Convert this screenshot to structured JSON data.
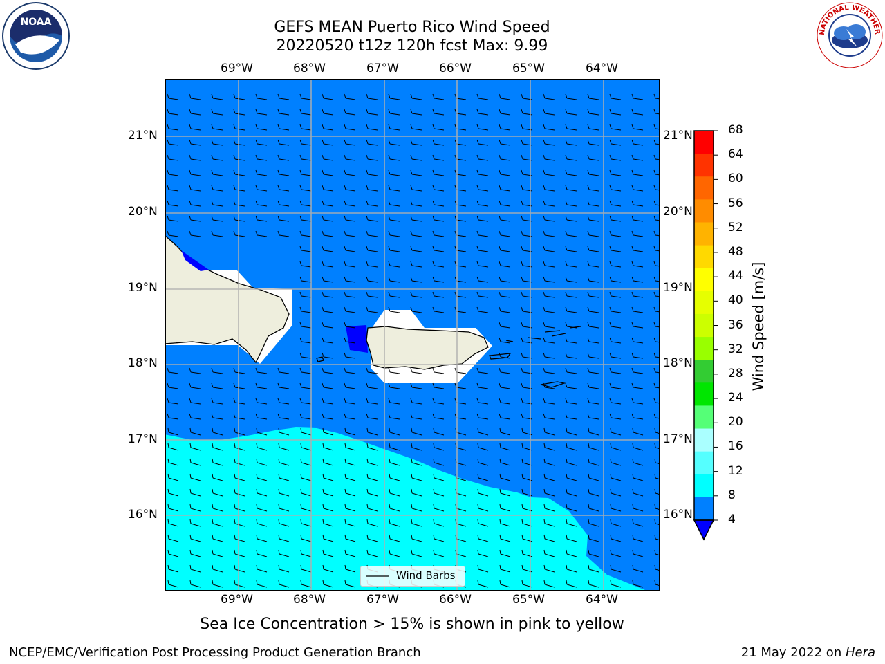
{
  "title": {
    "line1": "GEFS MEAN Puerto Rico Wind Speed",
    "line2": "20220520 t12z 120h fcst   Max: 9.99"
  },
  "lon_labels": [
    "69°W",
    "68°W",
    "67°W",
    "66°W",
    "65°W",
    "64°W"
  ],
  "lat_labels": [
    "21°N",
    "20°N",
    "19°N",
    "18°N",
    "17°N",
    "16°N"
  ],
  "colorbar": {
    "label": "Wind Speed [m/s]",
    "ticks": [
      "68",
      "64",
      "60",
      "56",
      "52",
      "48",
      "44",
      "40",
      "36",
      "32",
      "28",
      "24",
      "20",
      "16",
      "12",
      "8",
      "4"
    ],
    "colors": [
      "#ff0000",
      "#ff3300",
      "#ff6600",
      "#ff8c00",
      "#ffb300",
      "#ffd900",
      "#ffff00",
      "#e6ff00",
      "#ccff00",
      "#99ff00",
      "#33cc33",
      "#00e600",
      "#55ff77",
      "#aaffff",
      "#55ffff",
      "#00ffff",
      "#0080ff"
    ],
    "under_color": "#0000ff"
  },
  "legend": {
    "label": "Wind Barbs"
  },
  "note": "Sea Ice Concentration > 15% is shown in pink to yellow",
  "footer": {
    "left": "NCEP/EMC/Verification Post Processing Product Generation Branch",
    "date": "21 May 2022 on ",
    "machine": "Hera"
  },
  "logos": {
    "noaa": "NOAA",
    "nws": "NATIONAL WEATHER SERVICE"
  },
  "map": {
    "ocean_color": "#0080ff",
    "calm_color": "#00ffff",
    "land_color": "#eeeedd",
    "low_color": "#0000ff"
  }
}
